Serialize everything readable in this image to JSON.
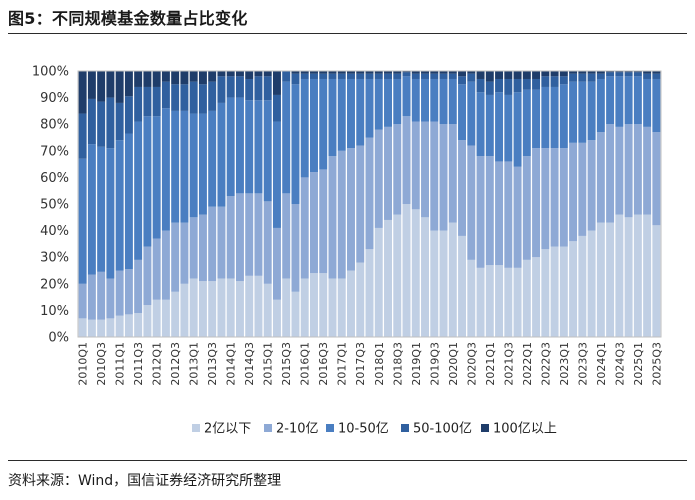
{
  "title": "图5：不同规模基金数量占比变化",
  "source": "资料来源：Wind，国信证券经济研究所整理",
  "colors": {
    "s1": "#c0cfe4",
    "s2": "#8ea9d5",
    "s3": "#4a7ec1",
    "s4": "#30609f",
    "s5": "#1f3d6a",
    "border": "#bfbfbf"
  },
  "chart_data": {
    "type": "bar",
    "stacked": true,
    "percent": true,
    "ylim": [
      0,
      100
    ],
    "yticks": [
      "0%",
      "10%",
      "20%",
      "30%",
      "40%",
      "50%",
      "60%",
      "70%",
      "80%",
      "90%",
      "100%"
    ],
    "legend_position": "bottom",
    "categories": [
      "2010Q1",
      "2010Q2",
      "2010Q3",
      "2010Q4",
      "2011Q1",
      "2011Q2",
      "2011Q3",
      "2011Q4",
      "2012Q1",
      "2012Q2",
      "2012Q3",
      "2012Q4",
      "2013Q1",
      "2013Q2",
      "2013Q3",
      "2013Q4",
      "2014Q1",
      "2014Q2",
      "2014Q3",
      "2014Q4",
      "2015Q1",
      "2015Q2",
      "2015Q3",
      "2015Q4",
      "2016Q1",
      "2016Q2",
      "2016Q3",
      "2016Q4",
      "2017Q1",
      "2017Q2",
      "2017Q3",
      "2017Q4",
      "2018Q1",
      "2018Q2",
      "2018Q3",
      "2018Q4",
      "2019Q1",
      "2019Q2",
      "2019Q3",
      "2019Q4",
      "2020Q1",
      "2020Q2",
      "2020Q3",
      "2020Q4",
      "2021Q1",
      "2021Q2",
      "2021Q3",
      "2021Q4",
      "2022Q1",
      "2022Q2",
      "2022Q3",
      "2022Q4",
      "2023Q1",
      "2023Q2",
      "2023Q3",
      "2023Q4",
      "2024Q1",
      "2024Q2",
      "2024Q3",
      "2024Q4",
      "2025Q1",
      "2025Q2",
      "2025Q3"
    ],
    "xtick_labels": [
      "2010Q1",
      "2010Q3",
      "2011Q1",
      "2011Q3",
      "2012Q1",
      "2012Q3",
      "2013Q1",
      "2013Q3",
      "2014Q1",
      "2014Q3",
      "2015Q1",
      "2015Q3",
      "2016Q1",
      "2016Q3",
      "2017Q1",
      "2017Q3",
      "2018Q1",
      "2018Q3",
      "2019Q1",
      "2019Q3",
      "2020Q1",
      "2020Q3",
      "2021Q1",
      "2021Q3",
      "2022Q1",
      "2022Q3",
      "2023Q1",
      "2023Q3",
      "2024Q1",
      "2024Q3",
      "2025Q1",
      "2025Q3"
    ],
    "series": [
      {
        "name": "2亿以下",
        "color": "#c0cfe4",
        "values": [
          7,
          6.5,
          6.5,
          7,
          8,
          8.5,
          9,
          12,
          14,
          14,
          17,
          20,
          22,
          21,
          21,
          22,
          22,
          21,
          23,
          23,
          20,
          14,
          22,
          17,
          22,
          24,
          24,
          22,
          22,
          25,
          28,
          33,
          41,
          44,
          46,
          50,
          48,
          45,
          40,
          40,
          43,
          38,
          29,
          26,
          27,
          27,
          26,
          26,
          29,
          30,
          33,
          34,
          34,
          36,
          38,
          40,
          43,
          43,
          46,
          45,
          46,
          46,
          42
        ]
      },
      {
        "name": "2-10亿",
        "color": "#8ea9d5",
        "values": [
          13,
          17,
          18,
          15,
          17,
          17,
          20,
          22,
          23,
          26,
          26,
          23,
          23,
          25,
          28,
          27,
          31,
          33,
          31,
          31,
          31,
          27,
          32,
          33,
          38,
          38,
          39,
          46,
          48,
          46,
          44,
          42,
          37,
          35,
          34,
          33,
          33,
          36,
          41,
          40,
          37,
          36,
          43,
          42,
          41,
          39,
          40,
          38,
          39,
          41,
          38,
          37,
          37,
          37,
          35,
          34,
          34,
          37,
          33,
          35,
          34,
          33,
          35
        ]
      },
      {
        "name": "10-50亿",
        "color": "#4a7ec1",
        "values": [
          47,
          49,
          47,
          49,
          49,
          51,
          52,
          49,
          46,
          46,
          42,
          42,
          39,
          38,
          36,
          39,
          37,
          36,
          35,
          35,
          38,
          40,
          42,
          45,
          37,
          35,
          34,
          29,
          27,
          26,
          25,
          22,
          19,
          18,
          17,
          15,
          16,
          16,
          16,
          17,
          17,
          21,
          24,
          24,
          23,
          26,
          25,
          28,
          25,
          22,
          23,
          23,
          24,
          23,
          23,
          22,
          20,
          18,
          19,
          18,
          18,
          18,
          20
        ]
      },
      {
        "name": "50-100亿",
        "color": "#30609f",
        "values": [
          17,
          17,
          17,
          19,
          14,
          14,
          13,
          11,
          11,
          10,
          10,
          10,
          12,
          11,
          11,
          10,
          8,
          8,
          8,
          9,
          9,
          10,
          4,
          4,
          2,
          2,
          2,
          2,
          2,
          2,
          2,
          2,
          2,
          2,
          2,
          1.5,
          2,
          2,
          2,
          2,
          2,
          3,
          3,
          5,
          5,
          5,
          6,
          5,
          4,
          4,
          4,
          4,
          3,
          3,
          3,
          3,
          2,
          1.5,
          1.5,
          1.5,
          1.5,
          2,
          2
        ]
      },
      {
        "name": "100亿以上",
        "color": "#1f3d6a",
        "values": [
          16,
          10.5,
          11.5,
          10,
          12,
          9.5,
          6,
          6,
          6,
          4,
          5,
          5,
          4,
          5,
          4,
          2,
          2,
          2,
          3,
          2,
          2,
          9,
          0,
          1,
          1,
          1,
          1,
          1,
          1,
          1,
          1,
          1,
          1,
          1,
          1,
          0.5,
          1,
          1,
          1,
          1,
          1,
          2,
          1,
          3,
          4,
          3,
          3,
          3,
          3,
          3,
          2,
          2,
          2,
          1,
          1,
          1,
          1,
          0.5,
          0.5,
          0.5,
          0.5,
          1,
          1
        ]
      }
    ]
  }
}
